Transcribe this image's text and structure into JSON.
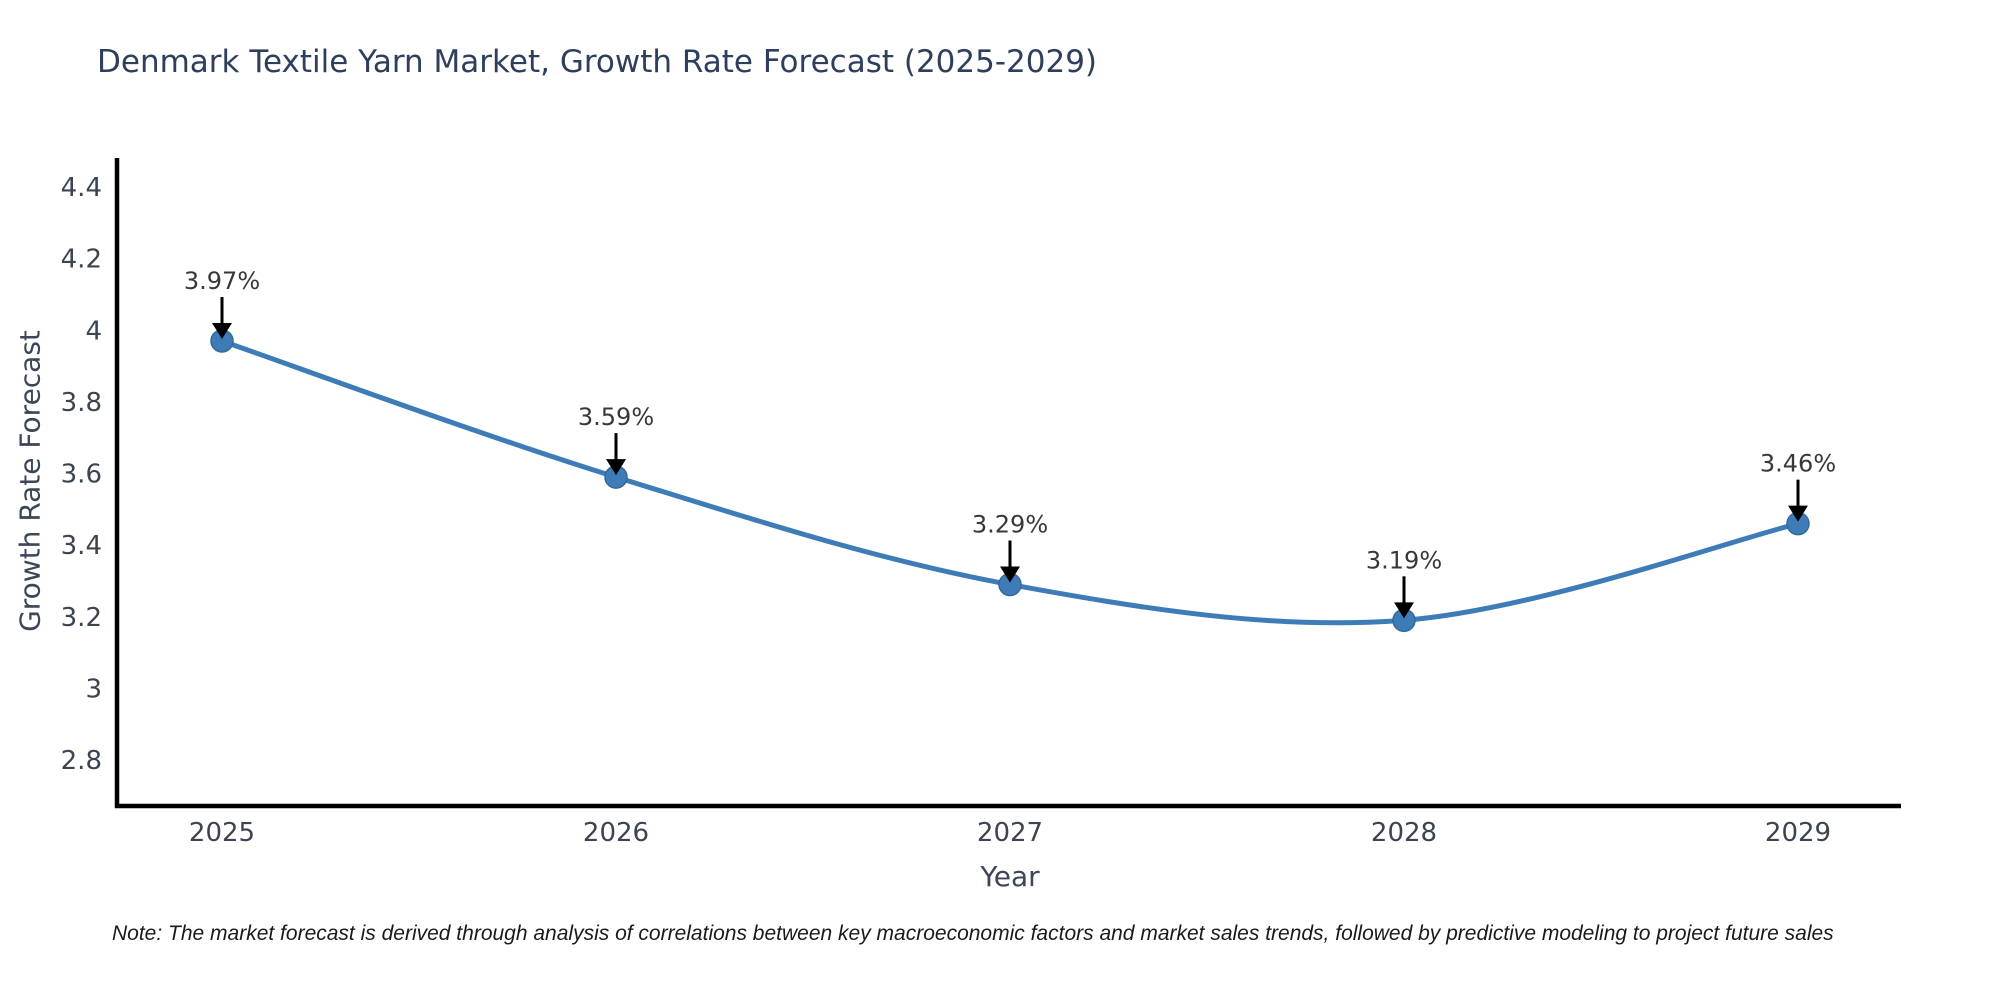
{
  "note": "Note: The market forecast is derived through analysis of correlations between key macroeconomic factors and market sales trends, followed by predictive modeling to project future sales",
  "chart_data": {
    "type": "line",
    "title": "Denmark Textile Yarn Market, Growth Rate Forecast (2025-2029)",
    "xlabel": "Year",
    "ylabel": "Growth Rate Forecast",
    "categories": [
      2025,
      2026,
      2027,
      2028,
      2029
    ],
    "values": [
      3.97,
      3.59,
      3.29,
      3.19,
      3.46
    ],
    "point_labels": [
      "3.97%",
      "3.59%",
      "3.29%",
      "3.19%",
      "3.46%"
    ],
    "yticks": [
      4.4,
      4.2,
      4,
      3.8,
      3.6,
      3.4,
      3.2,
      3,
      2.8
    ],
    "ylim": [
      2.67,
      4.48
    ],
    "grid": false,
    "legend": "none",
    "curve": "spline",
    "colors": {
      "line": "#3e7cb8",
      "marker": "#3e7cb8",
      "marker_edge": "#35699c",
      "axis": "#000000",
      "arrow": "#000000",
      "tick_text": "#3b4450",
      "annotation_text": "#38383a"
    }
  }
}
